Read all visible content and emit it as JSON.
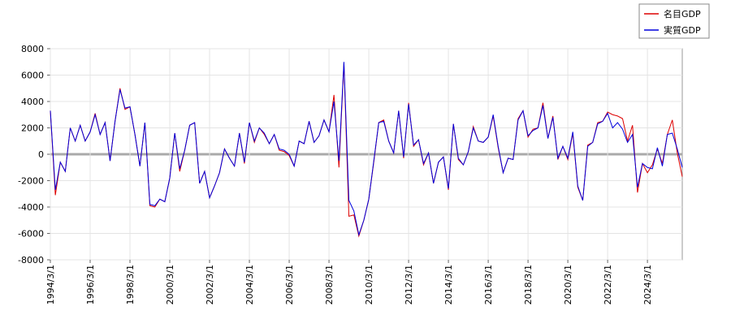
{
  "chart_data": {
    "type": "line",
    "categories": [
      "1994/3/1",
      null,
      null,
      null,
      null,
      null,
      null,
      null,
      "1996/3/1",
      null,
      null,
      null,
      null,
      null,
      null,
      null,
      "1998/3/1",
      null,
      null,
      null,
      null,
      null,
      null,
      null,
      "2000/3/1",
      null,
      null,
      null,
      null,
      null,
      null,
      null,
      "2002/3/1",
      null,
      null,
      null,
      null,
      null,
      null,
      null,
      "2004/3/1",
      null,
      null,
      null,
      null,
      null,
      null,
      null,
      "2006/3/1",
      null,
      null,
      null,
      null,
      null,
      null,
      null,
      "2008/3/1",
      null,
      null,
      null,
      null,
      null,
      null,
      null,
      "2010/3/1",
      null,
      null,
      null,
      null,
      null,
      null,
      null,
      "2012/3/1",
      null,
      null,
      null,
      null,
      null,
      null,
      null,
      "2014/3/1",
      null,
      null,
      null,
      null,
      null,
      null,
      null,
      "2016/3/1",
      null,
      null,
      null,
      null,
      null,
      null,
      null,
      "2018/3/1",
      null,
      null,
      null,
      null,
      null,
      null,
      null,
      "2020/3/1",
      null,
      null,
      null,
      null,
      null,
      null,
      null,
      "2022/3/1",
      null,
      null,
      null,
      null,
      null,
      null,
      null,
      "2024/3/1",
      null,
      null,
      null,
      null,
      null,
      null,
      null
    ],
    "series": [
      {
        "name": "名目GDP",
        "color": "#dd0000",
        "values": [
          3300,
          -3100,
          -600,
          -1300,
          2000,
          1000,
          2200,
          1000,
          1700,
          3100,
          1500,
          2400,
          -500,
          2500,
          5000,
          3400,
          3600,
          1500,
          -900,
          2400,
          -3900,
          -4000,
          -3400,
          -3600,
          -1800,
          1600,
          -1300,
          300,
          2200,
          2400,
          -2200,
          -1300,
          -3300,
          -2400,
          -1400,
          400,
          -300,
          -900,
          1600,
          -700,
          2400,
          900,
          2000,
          1500,
          800,
          1500,
          300,
          200,
          -100,
          -900,
          1000,
          800,
          2500,
          900,
          1400,
          2600,
          1700,
          4500,
          -1000,
          6900,
          -4700,
          -4600,
          -6200,
          -5000,
          -3400,
          -600,
          2400,
          2600,
          1000,
          100,
          3300,
          -300,
          3900,
          600,
          1100,
          -800,
          100,
          -2200,
          -600,
          -200,
          -2700,
          2300,
          -400,
          -800,
          200,
          2100,
          1000,
          900,
          1300,
          2900,
          500,
          -1400,
          -300,
          -400,
          2700,
          3300,
          1300,
          1900,
          2000,
          3900,
          1200,
          2900,
          -400,
          600,
          -400,
          1600,
          -2500,
          -3500,
          700,
          900,
          2400,
          2500,
          3200,
          3000,
          2900,
          2700,
          1000,
          2200,
          -2900,
          -700,
          -1400,
          -800,
          400,
          -700,
          1500,
          2600,
          100,
          -1700
        ]
      },
      {
        "name": "実質GDP",
        "color": "#0000dd",
        "values": [
          3300,
          -2700,
          -600,
          -1300,
          2000,
          1000,
          2200,
          1000,
          1700,
          3000,
          1500,
          2400,
          -500,
          2500,
          4900,
          3500,
          3600,
          1500,
          -900,
          2400,
          -3800,
          -3900,
          -3400,
          -3600,
          -1800,
          1600,
          -1100,
          300,
          2200,
          2400,
          -2200,
          -1300,
          -3300,
          -2400,
          -1400,
          400,
          -300,
          -900,
          1600,
          -600,
          2400,
          1000,
          2000,
          1600,
          800,
          1500,
          400,
          300,
          0,
          -900,
          1000,
          800,
          2500,
          900,
          1400,
          2600,
          1700,
          4000,
          -500,
          7000,
          -3500,
          -4300,
          -6100,
          -5000,
          -3400,
          -500,
          2400,
          2500,
          1000,
          100,
          3300,
          -200,
          3800,
          700,
          1100,
          -700,
          100,
          -2200,
          -600,
          -200,
          -2600,
          2300,
          -300,
          -800,
          200,
          2000,
          1000,
          900,
          1300,
          3000,
          600,
          -1400,
          -300,
          -400,
          2600,
          3300,
          1400,
          1800,
          2000,
          3700,
          1200,
          2800,
          -300,
          600,
          -300,
          1700,
          -2400,
          -3500,
          600,
          900,
          2300,
          2500,
          3100,
          2000,
          2400,
          1900,
          900,
          1500,
          -2500,
          -700,
          -1000,
          -1100,
          500,
          -900,
          1500,
          1600,
          400,
          -1000
        ]
      }
    ],
    "ylim": [
      -8000,
      8000
    ],
    "yticks": [
      -8000,
      -6000,
      -4000,
      -2000,
      0,
      2000,
      4000,
      6000,
      8000
    ],
    "grid": true,
    "legend": "top-right"
  }
}
